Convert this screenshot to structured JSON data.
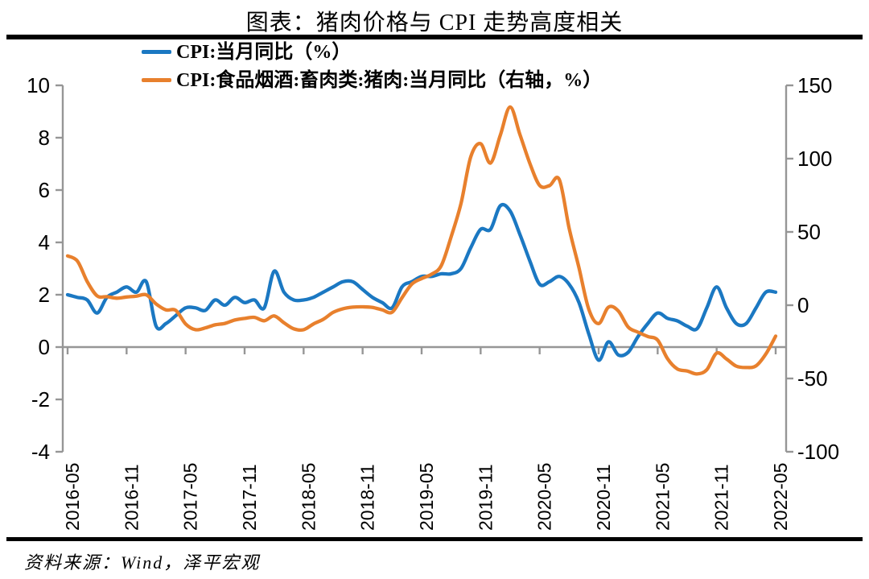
{
  "page": {
    "title": "图表：猪肉价格与 CPI 走势高度相关",
    "source": "资料来源：Wind，泽平宏观"
  },
  "legend": {
    "items": [
      {
        "label": "CPI:当月同比（%）",
        "color": "#1B78C2"
      },
      {
        "label": "CPI:食品烟酒:畜肉类:猪肉:当月同比（右轴，%）",
        "color": "#E8802D"
      }
    ]
  },
  "chart_data": {
    "type": "line",
    "title": "图表：猪肉价格与 CPI 走势高度相关",
    "source": "资料来源：Wind，泽平宏观",
    "frequency": "monthly",
    "x_start": "2016-05",
    "x_end": "2022-05",
    "x_tick_labels": [
      "2016-05",
      "2016-11",
      "2017-05",
      "2017-11",
      "2018-05",
      "2018-11",
      "2019-05",
      "2019-11",
      "2020-05",
      "2020-11",
      "2021-05",
      "2021-11",
      "2022-05"
    ],
    "left_axis": {
      "ticks": [
        10,
        8,
        6,
        4,
        2,
        0,
        -2,
        -4
      ],
      "min": -4,
      "max": 10
    },
    "right_axis": {
      "ticks": [
        150,
        100,
        50,
        0,
        -50,
        -100
      ],
      "min": -100,
      "max": 150
    },
    "grid": "off",
    "baseline_at_left_zero": true,
    "legend_position": "top-left",
    "axis_color": "#969696",
    "line_smoothing": true,
    "series": [
      {
        "name": "CPI:当月同比（%）",
        "axis": "left",
        "color": "#1B78C2",
        "values": [
          2.0,
          1.9,
          1.8,
          1.3,
          1.9,
          2.1,
          2.3,
          2.1,
          2.5,
          0.8,
          0.9,
          1.2,
          1.5,
          1.5,
          1.4,
          1.8,
          1.6,
          1.9,
          1.7,
          1.8,
          1.5,
          2.9,
          2.1,
          1.8,
          1.8,
          1.9,
          2.1,
          2.3,
          2.5,
          2.5,
          2.2,
          1.9,
          1.7,
          1.5,
          2.3,
          2.5,
          2.7,
          2.7,
          2.8,
          2.8,
          3.0,
          3.8,
          4.5,
          4.5,
          5.4,
          5.2,
          4.3,
          3.3,
          2.4,
          2.5,
          2.7,
          2.4,
          1.7,
          0.5,
          -0.5,
          0.2,
          -0.3,
          -0.2,
          0.4,
          0.9,
          1.3,
          1.1,
          1.0,
          0.8,
          0.7,
          1.5,
          2.3,
          1.5,
          0.9,
          0.9,
          1.5,
          2.1,
          2.1
        ]
      },
      {
        "name": "CPI:食品烟酒:畜肉类:猪肉:当月同比（右轴，%）",
        "axis": "right",
        "color": "#E8802D",
        "values": [
          33.6,
          30.1,
          16.1,
          6.4,
          5.8,
          4.8,
          5.6,
          6.2,
          7.1,
          0.9,
          -3.2,
          -3.5,
          -12.8,
          -16.7,
          -15.5,
          -13.4,
          -12.4,
          -10.1,
          -9.0,
          -8.3,
          -10.6,
          -7.3,
          -12.0,
          -16.1,
          -16.7,
          -12.8,
          -9.6,
          -4.9,
          -2.4,
          -1.3,
          -1.1,
          -1.5,
          -3.2,
          -4.8,
          5.1,
          14.4,
          18.2,
          21.1,
          27.0,
          46.7,
          69.3,
          101.3,
          110.2,
          97.0,
          116.0,
          135.2,
          116.4,
          96.9,
          81.7,
          81.6,
          85.7,
          52.6,
          25.5,
          -2.8,
          -12.5,
          -1.3,
          -3.9,
          -14.9,
          -18.4,
          -21.4,
          -23.8,
          -36.5,
          -43.5,
          -44.9,
          -46.9,
          -44.0,
          -32.7,
          -36.7,
          -41.6,
          -42.5,
          -41.4,
          -33.3,
          -21.1
        ]
      }
    ]
  }
}
